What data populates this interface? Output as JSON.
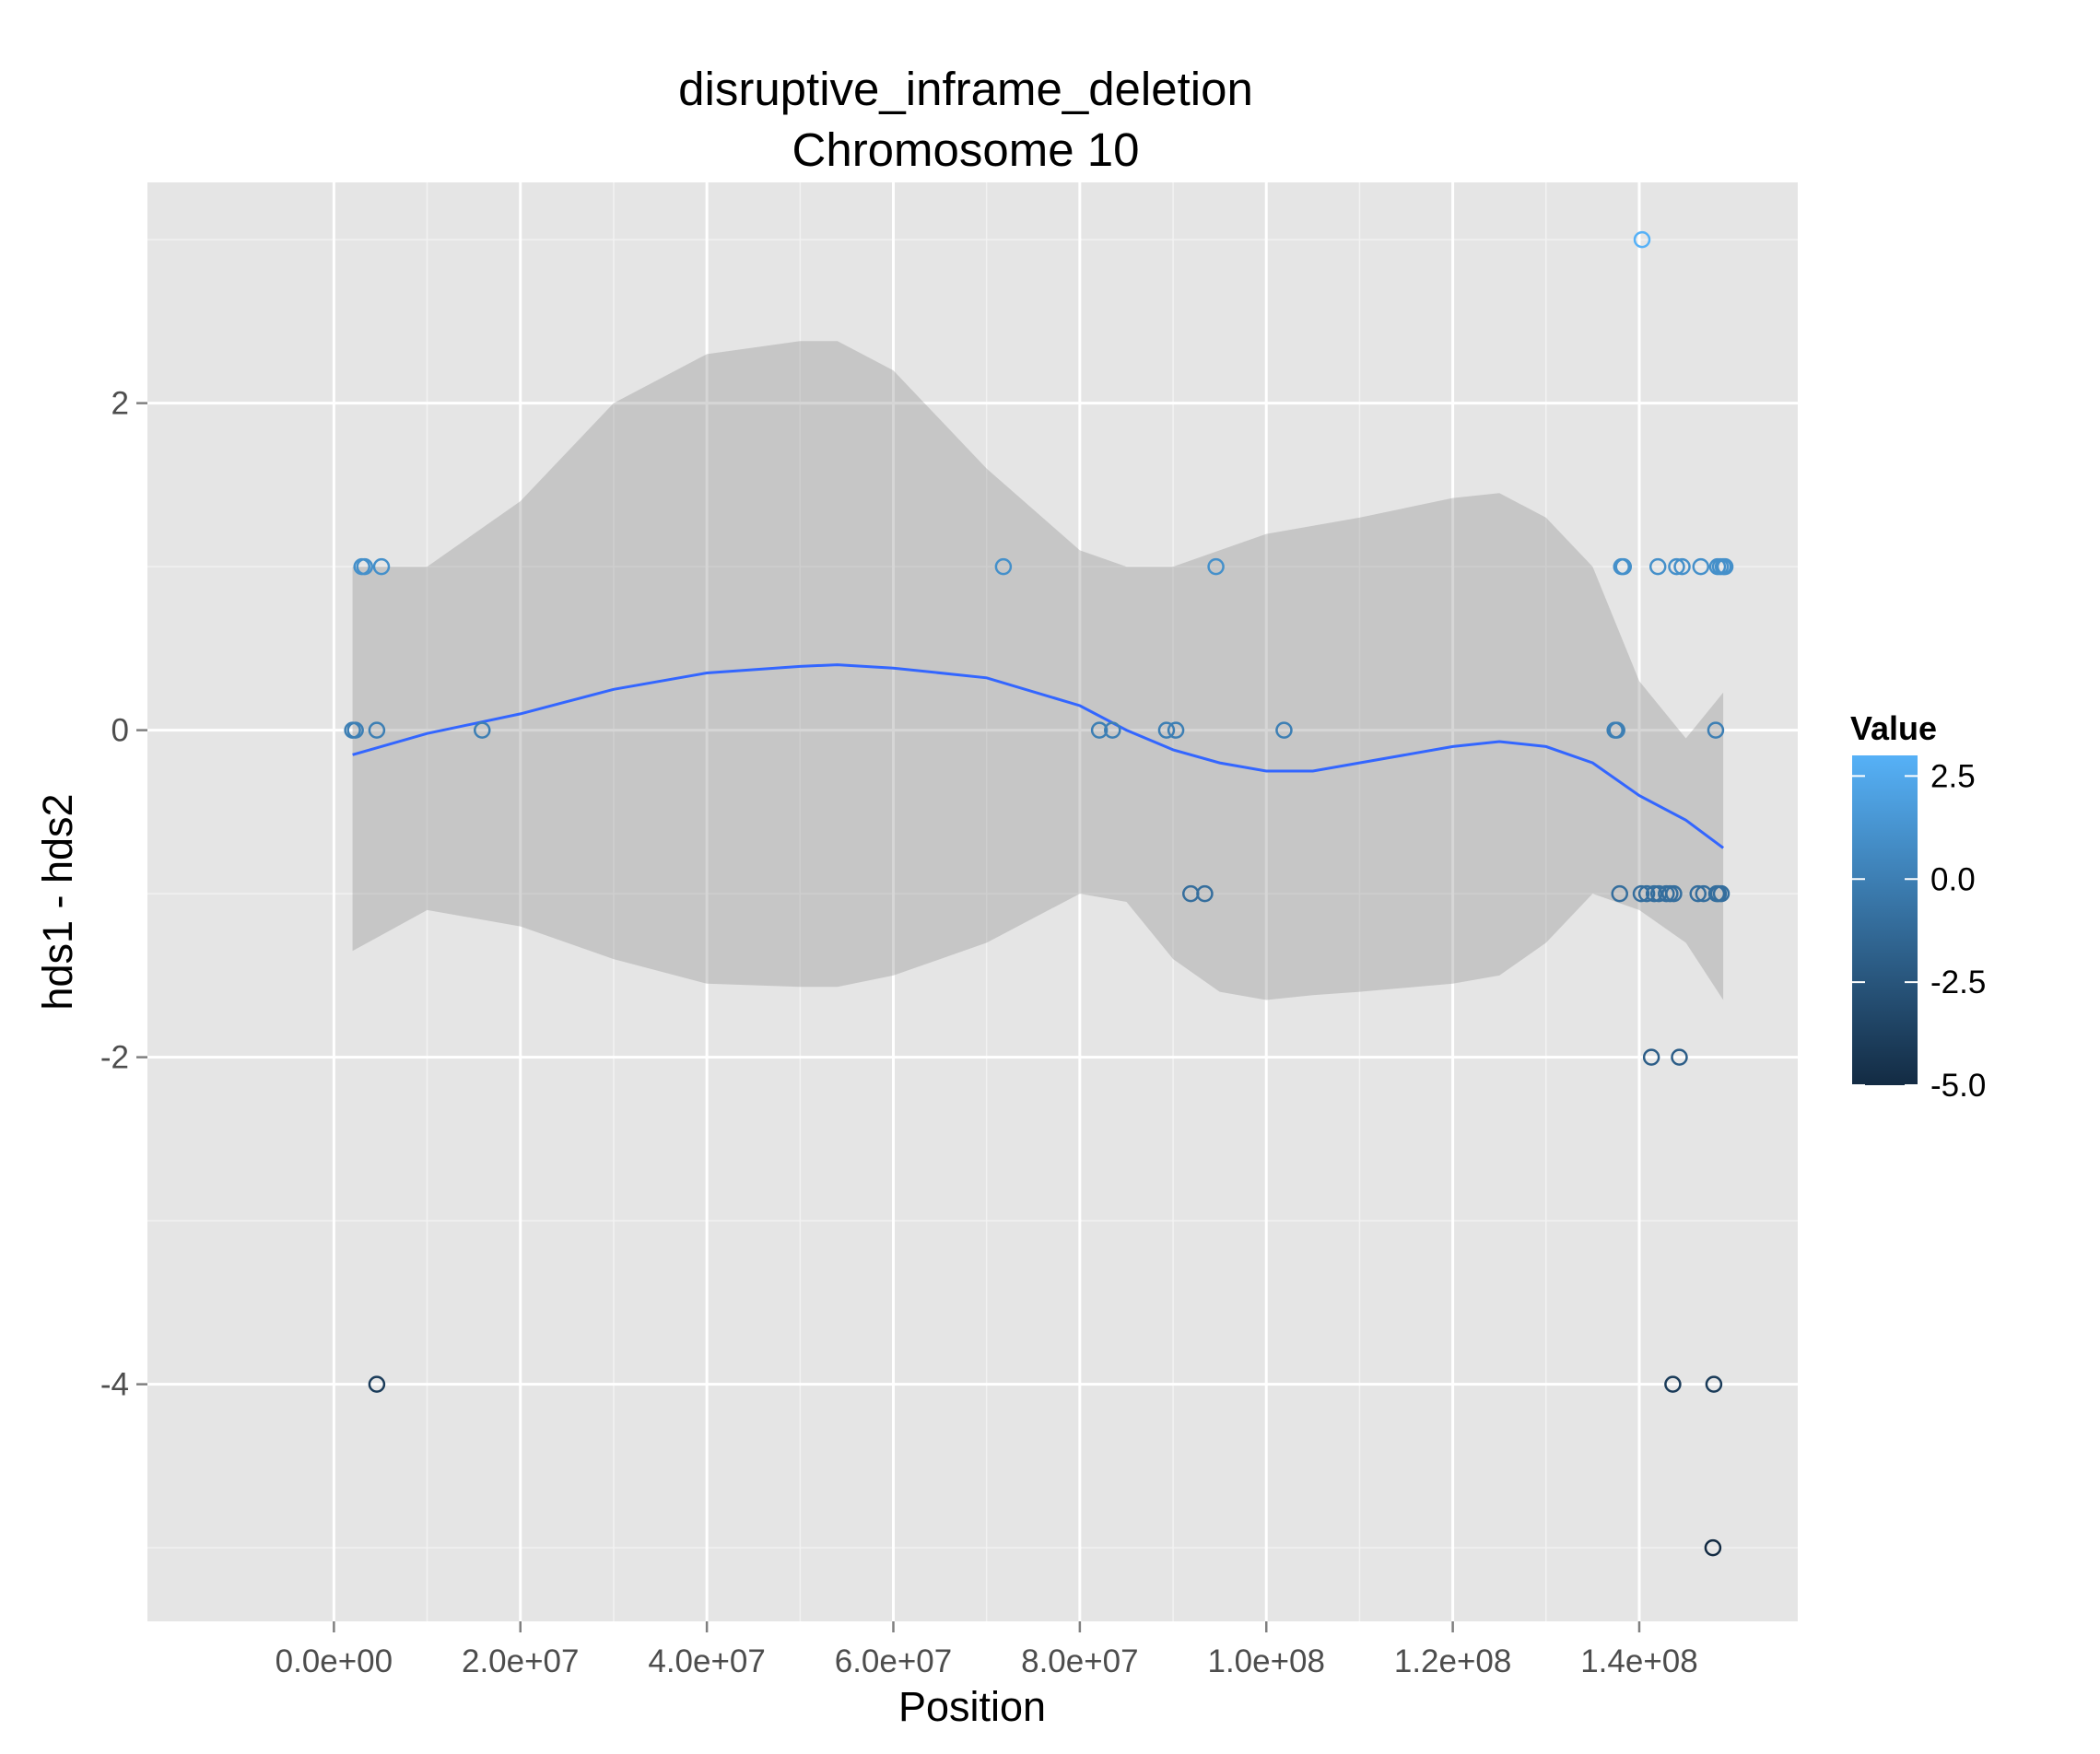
{
  "chart_data": {
    "type": "scatter",
    "title": "disruptive_inframe_deletion",
    "subtitle": "Chromosome 10",
    "xlabel": "Position",
    "ylabel": "hds1 - hds2",
    "xlim": [
      -20000000,
      157000000
    ],
    "ylim": [
      -5.45,
      3.35
    ],
    "x_ticks": [
      0,
      20000000,
      40000000,
      60000000,
      80000000,
      100000000,
      120000000,
      140000000
    ],
    "x_tick_labels": [
      "0.0e+00",
      "2.0e+07",
      "4.0e+07",
      "6.0e+07",
      "8.0e+07",
      "1.0e+08",
      "1.2e+08",
      "1.4e+08"
    ],
    "y_ticks": [
      -4,
      -2,
      0,
      2
    ],
    "y_tick_labels": [
      "-4",
      "-2",
      "0",
      "2"
    ],
    "grid": true,
    "legend": {
      "title": "Value",
      "placement": "right",
      "range": [
        -5,
        3
      ],
      "breaks": [
        2.5,
        0,
        -2.5,
        -5
      ],
      "labels": [
        "2.5",
        "0.0",
        "-2.5",
        "-5.0"
      ],
      "low_color": "#132B43",
      "high_color": "#56B1F7"
    },
    "points": [
      {
        "x": 2000000,
        "y": 0
      },
      {
        "x": 2300000,
        "y": 0
      },
      {
        "x": 3000000,
        "y": 1
      },
      {
        "x": 3300000,
        "y": 1
      },
      {
        "x": 4600000,
        "y": 0
      },
      {
        "x": 4600000,
        "y": -4
      },
      {
        "x": 5100000,
        "y": 1
      },
      {
        "x": 15900000,
        "y": 0
      },
      {
        "x": 71800000,
        "y": 1
      },
      {
        "x": 82100000,
        "y": 0
      },
      {
        "x": 83500000,
        "y": 0
      },
      {
        "x": 89300000,
        "y": 0
      },
      {
        "x": 90300000,
        "y": 0
      },
      {
        "x": 91900000,
        "y": -1
      },
      {
        "x": 93400000,
        "y": -1
      },
      {
        "x": 94600000,
        "y": 1
      },
      {
        "x": 101900000,
        "y": 0
      },
      {
        "x": 137400000,
        "y": 0
      },
      {
        "x": 137600000,
        "y": 0
      },
      {
        "x": 137900000,
        "y": -1
      },
      {
        "x": 138100000,
        "y": 1
      },
      {
        "x": 138300000,
        "y": 1
      },
      {
        "x": 140200000,
        "y": -1
      },
      {
        "x": 140300000,
        "y": 3
      },
      {
        "x": 140800000,
        "y": -1
      },
      {
        "x": 141300000,
        "y": -2
      },
      {
        "x": 141600000,
        "y": -1
      },
      {
        "x": 142000000,
        "y": 1
      },
      {
        "x": 142100000,
        "y": -1
      },
      {
        "x": 142900000,
        "y": -1
      },
      {
        "x": 143300000,
        "y": -1
      },
      {
        "x": 143600000,
        "y": -4
      },
      {
        "x": 143700000,
        "y": -1
      },
      {
        "x": 144000000,
        "y": 1
      },
      {
        "x": 144300000,
        "y": -2
      },
      {
        "x": 144600000,
        "y": 1
      },
      {
        "x": 146300000,
        "y": -1
      },
      {
        "x": 146600000,
        "y": 1
      },
      {
        "x": 146900000,
        "y": -1
      },
      {
        "x": 147900000,
        "y": -5
      },
      {
        "x": 148000000,
        "y": -4
      },
      {
        "x": 148200000,
        "y": 0
      },
      {
        "x": 148300000,
        "y": -1
      },
      {
        "x": 148400000,
        "y": 1
      },
      {
        "x": 148500000,
        "y": -1
      },
      {
        "x": 148700000,
        "y": 1
      },
      {
        "x": 148800000,
        "y": -1
      },
      {
        "x": 149000000,
        "y": 1
      },
      {
        "x": 149200000,
        "y": 1
      }
    ],
    "smooth": {
      "line_color": "#3366ff",
      "band_color": "#999999",
      "x": [
        2000000,
        10000000,
        20000000,
        30000000,
        40000000,
        50000000,
        54000000,
        60000000,
        70000000,
        80000000,
        85000000,
        90000000,
        95000000,
        100000000,
        105000000,
        110000000,
        120000000,
        125000000,
        130000000,
        135000000,
        140000000,
        145000000,
        149000000
      ],
      "y": [
        -0.15,
        -0.02,
        0.1,
        0.25,
        0.35,
        0.39,
        0.4,
        0.38,
        0.32,
        0.15,
        0.0,
        -0.12,
        -0.2,
        -0.25,
        -0.25,
        -0.2,
        -0.1,
        -0.07,
        -0.1,
        -0.2,
        -0.4,
        -0.55,
        -0.72
      ],
      "upper": [
        1.0,
        1.0,
        1.4,
        2.0,
        2.3,
        2.38,
        2.38,
        2.2,
        1.6,
        1.1,
        1.0,
        1.0,
        1.1,
        1.2,
        1.25,
        1.3,
        1.42,
        1.45,
        1.3,
        1.0,
        0.3,
        -0.05,
        0.23
      ],
      "lower": [
        -1.35,
        -1.1,
        -1.2,
        -1.4,
        -1.55,
        -1.57,
        -1.57,
        -1.5,
        -1.3,
        -1.0,
        -1.05,
        -1.4,
        -1.6,
        -1.65,
        -1.62,
        -1.6,
        -1.55,
        -1.5,
        -1.3,
        -1.0,
        -1.1,
        -1.3,
        -1.65
      ]
    }
  }
}
